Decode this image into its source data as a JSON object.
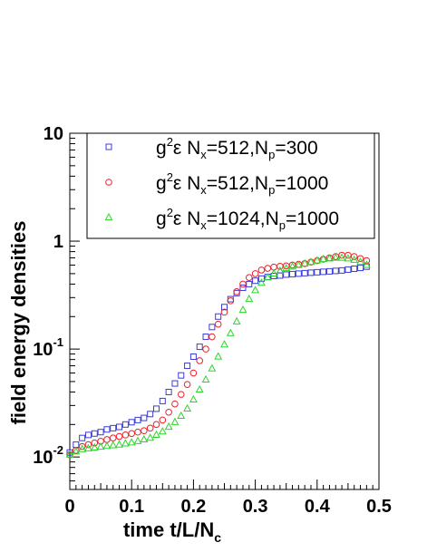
{
  "chart_data": {
    "type": "scatter",
    "xlabel": "time t/L/N",
    "xlabel_sub": "c",
    "ylabel": "field energy densities",
    "xlim": [
      0,
      0.5
    ],
    "ylim": [
      0.005,
      10
    ],
    "y_scale": "log",
    "grid": false,
    "legend_placement": "top-left",
    "x_ticks": [
      {
        "value": 0,
        "label": "0"
      },
      {
        "value": 0.1,
        "label": "0.1"
      },
      {
        "value": 0.2,
        "label": "0.2"
      },
      {
        "value": 0.3,
        "label": "0.3"
      },
      {
        "value": 0.4,
        "label": "0.4"
      },
      {
        "value": 0.5,
        "label": "0.5"
      }
    ],
    "y_ticks": [
      {
        "value": 0.01,
        "base": "10",
        "exp": "-2"
      },
      {
        "value": 0.1,
        "base": "10",
        "exp": "-1"
      },
      {
        "value": 1,
        "base": "1",
        "exp": ""
      },
      {
        "value": 10,
        "base": "10",
        "exp": ""
      }
    ],
    "series": [
      {
        "name": "g2ε Nx=512,Np=300",
        "legend_parts": {
          "g": "g",
          "gsup": "2",
          "eps": "ε N",
          "n1sub": "x",
          "n1rest": "=512,N",
          "n2sub": "p",
          "n2rest": "=300"
        },
        "color": "#3b3bd9",
        "marker": "square",
        "x": [
          0.0,
          0.01,
          0.02,
          0.03,
          0.04,
          0.05,
          0.06,
          0.07,
          0.08,
          0.09,
          0.1,
          0.11,
          0.12,
          0.13,
          0.14,
          0.15,
          0.16,
          0.17,
          0.18,
          0.19,
          0.2,
          0.21,
          0.22,
          0.23,
          0.24,
          0.25,
          0.26,
          0.27,
          0.28,
          0.29,
          0.3,
          0.31,
          0.32,
          0.33,
          0.34,
          0.35,
          0.36,
          0.37,
          0.38,
          0.39,
          0.4,
          0.41,
          0.42,
          0.43,
          0.44,
          0.45,
          0.46,
          0.47,
          0.48
        ],
        "y": [
          0.011,
          0.013,
          0.015,
          0.016,
          0.0165,
          0.017,
          0.018,
          0.0185,
          0.019,
          0.02,
          0.021,
          0.022,
          0.023,
          0.025,
          0.028,
          0.033,
          0.04,
          0.048,
          0.057,
          0.07,
          0.085,
          0.105,
          0.13,
          0.16,
          0.2,
          0.245,
          0.29,
          0.33,
          0.37,
          0.4,
          0.43,
          0.45,
          0.465,
          0.475,
          0.48,
          0.49,
          0.495,
          0.5,
          0.505,
          0.51,
          0.515,
          0.52,
          0.525,
          0.53,
          0.535,
          0.545,
          0.555,
          0.565,
          0.58
        ]
      },
      {
        "name": "g2ε Nx=512,Np=1000",
        "legend_parts": {
          "g": "g",
          "gsup": "2",
          "eps": "ε N",
          "n1sub": "x",
          "n1rest": "=512,N",
          "n2sub": "p",
          "n2rest": "=1000"
        },
        "color": "#e8222a",
        "marker": "circle",
        "x": [
          0.0,
          0.01,
          0.02,
          0.03,
          0.04,
          0.05,
          0.06,
          0.07,
          0.08,
          0.09,
          0.1,
          0.11,
          0.12,
          0.13,
          0.14,
          0.15,
          0.16,
          0.17,
          0.18,
          0.19,
          0.2,
          0.21,
          0.22,
          0.23,
          0.24,
          0.25,
          0.26,
          0.27,
          0.28,
          0.29,
          0.3,
          0.31,
          0.32,
          0.33,
          0.34,
          0.35,
          0.36,
          0.37,
          0.38,
          0.39,
          0.4,
          0.41,
          0.42,
          0.43,
          0.44,
          0.45,
          0.46,
          0.47,
          0.48
        ],
        "y": [
          0.0105,
          0.0115,
          0.0125,
          0.013,
          0.0135,
          0.014,
          0.0145,
          0.015,
          0.0155,
          0.016,
          0.0165,
          0.017,
          0.0175,
          0.0185,
          0.02,
          0.022,
          0.026,
          0.031,
          0.038,
          0.047,
          0.06,
          0.078,
          0.1,
          0.13,
          0.17,
          0.22,
          0.28,
          0.34,
          0.4,
          0.46,
          0.5,
          0.54,
          0.56,
          0.575,
          0.585,
          0.59,
          0.6,
          0.61,
          0.62,
          0.64,
          0.66,
          0.68,
          0.7,
          0.72,
          0.74,
          0.74,
          0.72,
          0.69,
          0.66
        ]
      },
      {
        "name": "g2ε Nx=1024,Np=1000",
        "legend_parts": {
          "g": "g",
          "gsup": "2",
          "eps": "ε N",
          "n1sub": "x",
          "n1rest": "=1024,N",
          "n2sub": "p",
          "n2rest": "=1000"
        },
        "color": "#2bd62b",
        "marker": "triangle",
        "x": [
          0.0,
          0.01,
          0.02,
          0.03,
          0.04,
          0.05,
          0.06,
          0.07,
          0.08,
          0.09,
          0.1,
          0.11,
          0.12,
          0.13,
          0.14,
          0.15,
          0.16,
          0.17,
          0.18,
          0.19,
          0.2,
          0.21,
          0.22,
          0.23,
          0.24,
          0.25,
          0.26,
          0.27,
          0.28,
          0.29,
          0.3,
          0.31,
          0.32,
          0.33,
          0.34,
          0.35,
          0.36,
          0.37,
          0.38,
          0.39,
          0.4,
          0.41,
          0.42,
          0.43,
          0.44,
          0.45,
          0.46,
          0.47,
          0.48
        ],
        "y": [
          0.0105,
          0.0112,
          0.0118,
          0.012,
          0.0122,
          0.0124,
          0.0126,
          0.0128,
          0.013,
          0.0133,
          0.0136,
          0.014,
          0.0145,
          0.015,
          0.016,
          0.0172,
          0.019,
          0.021,
          0.024,
          0.028,
          0.034,
          0.042,
          0.052,
          0.066,
          0.085,
          0.11,
          0.14,
          0.18,
          0.23,
          0.29,
          0.35,
          0.41,
          0.46,
          0.5,
          0.53,
          0.56,
          0.58,
          0.6,
          0.62,
          0.64,
          0.66,
          0.68,
          0.69,
          0.7,
          0.7,
          0.69,
          0.67,
          0.64,
          0.6
        ]
      }
    ]
  }
}
